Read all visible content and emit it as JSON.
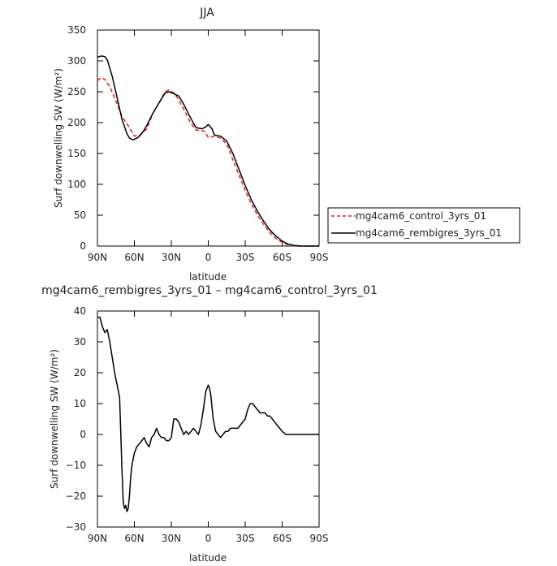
{
  "chart_data": [
    {
      "type": "line",
      "title": "JJA",
      "xlabel": "latitude",
      "ylabel": "Surf downwelling SW (W/m²)",
      "xlim": [
        90,
        -90
      ],
      "ylim": [
        0,
        350
      ],
      "xticks": [
        90,
        60,
        30,
        0,
        -30,
        -60,
        -90
      ],
      "xtick_labels": [
        "90N",
        "60N",
        "30N",
        "0",
        "30S",
        "60S",
        "90S"
      ],
      "yticks": [
        0,
        50,
        100,
        150,
        200,
        250,
        300,
        350
      ],
      "ytick_labels": [
        "0",
        "50",
        "100",
        "150",
        "200",
        "250",
        "300",
        "350"
      ],
      "legend_position": "right",
      "series": [
        {
          "name": "mg4cam6_control_3yrs_01",
          "color": "#e02020",
          "dash": "dashed",
          "x": [
            90,
            87,
            84,
            80,
            75,
            70,
            65,
            60,
            55,
            50,
            45,
            40,
            35,
            32,
            28,
            25,
            20,
            15,
            10,
            5,
            3,
            0,
            -3,
            -5,
            -10,
            -15,
            -20,
            -25,
            -30,
            -35,
            -40,
            -45,
            -50,
            -55,
            -60,
            -65,
            -70,
            -75,
            -80,
            -85,
            -90
          ],
          "y": [
            268,
            273,
            270,
            258,
            235,
            210,
            195,
            178,
            180,
            190,
            215,
            232,
            250,
            253,
            248,
            240,
            222,
            202,
            188,
            187,
            186,
            176,
            177,
            178,
            175,
            165,
            140,
            115,
            90,
            68,
            50,
            35,
            22,
            12,
            6,
            2,
            0,
            0,
            0,
            0,
            0
          ]
        },
        {
          "name": "mg4cam6_rembigres_3yrs_01",
          "color": "#000000",
          "dash": "solid",
          "x": [
            90,
            87,
            84,
            82,
            78,
            74,
            70,
            66,
            64,
            61,
            57,
            53,
            50,
            45,
            40,
            35,
            32,
            28,
            24,
            20,
            15,
            10,
            5,
            2,
            0,
            -3,
            -5,
            -10,
            -15,
            -20,
            -25,
            -30,
            -35,
            -40,
            -45,
            -50,
            -55,
            -60,
            -65,
            -70,
            -75,
            -80,
            -85,
            -90
          ],
          "y": [
            306,
            308,
            307,
            302,
            275,
            240,
            205,
            182,
            175,
            172,
            176,
            185,
            195,
            215,
            232,
            248,
            250,
            247,
            243,
            230,
            210,
            192,
            190,
            193,
            197,
            190,
            180,
            178,
            170,
            150,
            124,
            98,
            75,
            56,
            40,
            26,
            16,
            8,
            3,
            1,
            0,
            0,
            0,
            0
          ]
        }
      ]
    },
    {
      "type": "line",
      "title": "mg4cam6_rembigres_3yrs_01 – mg4cam6_control_3yrs_01",
      "xlabel": "latitude",
      "ylabel": "Surf downwelling SW (W/m²)",
      "xlim": [
        90,
        -90
      ],
      "ylim": [
        -30,
        40
      ],
      "xticks": [
        90,
        60,
        30,
        0,
        -30,
        -60,
        -90
      ],
      "xtick_labels": [
        "90N",
        "60N",
        "30N",
        "0",
        "30S",
        "60S",
        "90S"
      ],
      "yticks": [
        -30,
        -20,
        -10,
        0,
        10,
        20,
        30,
        40
      ],
      "ytick_labels": [
        "−30",
        "−20",
        "−10",
        "0",
        "10",
        "20",
        "30",
        "40"
      ],
      "series": [
        {
          "color": "#000000",
          "dash": "solid",
          "x": [
            90,
            88,
            86,
            84,
            82,
            80,
            78,
            76,
            74,
            72,
            71,
            70,
            69,
            68,
            67,
            66,
            65,
            64,
            63,
            62,
            61,
            60,
            58,
            56,
            54,
            52,
            50,
            48,
            46,
            44,
            42,
            40,
            38,
            36,
            34,
            32,
            30,
            28,
            26,
            24,
            22,
            20,
            18,
            16,
            14,
            12,
            10,
            8,
            6,
            4,
            2,
            0,
            -1,
            -2,
            -4,
            -6,
            -8,
            -10,
            -12,
            -14,
            -16,
            -18,
            -20,
            -22,
            -24,
            -26,
            -28,
            -30,
            -32,
            -34,
            -36,
            -38,
            -40,
            -42,
            -44,
            -46,
            -48,
            -50,
            -52,
            -54,
            -56,
            -58,
            -60,
            -63,
            -66,
            -70,
            -75,
            -80,
            -85,
            -90
          ],
          "y": [
            38,
            38,
            35,
            33,
            34,
            30,
            25,
            20,
            16,
            12,
            0,
            -12,
            -22,
            -24,
            -23,
            -25,
            -24,
            -20,
            -14,
            -10,
            -8,
            -6,
            -4,
            -3,
            -2,
            -1,
            -3,
            -4,
            -1,
            0,
            2,
            0,
            -1,
            -1,
            -2,
            -2,
            -1,
            5,
            5,
            4,
            2,
            0,
            1,
            0,
            1,
            2,
            1,
            0,
            3,
            8,
            14,
            16,
            15,
            13,
            5,
            1,
            0,
            -1,
            0,
            1,
            1,
            2,
            2,
            2,
            2,
            3,
            4,
            5,
            8,
            10,
            10,
            9,
            8,
            7,
            7,
            7,
            6,
            6,
            5,
            4,
            3,
            2,
            1,
            0,
            0,
            0,
            0,
            0,
            0,
            0
          ]
        }
      ]
    }
  ]
}
